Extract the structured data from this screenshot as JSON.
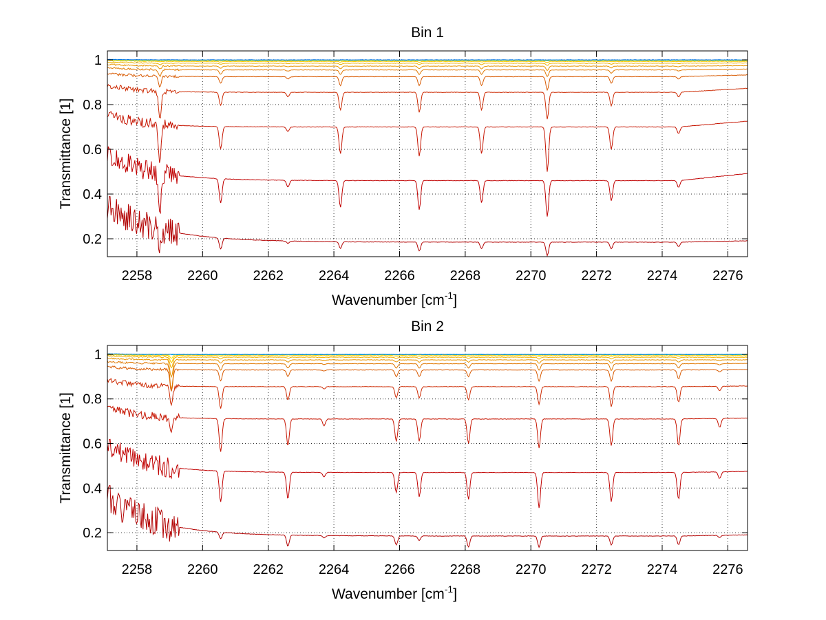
{
  "chart_data": [
    {
      "type": "line",
      "title": "Bin 1",
      "xlabel": "Wavenumber [cm",
      "xlabel_sup": "-1",
      "xlabel_suffix": "]",
      "ylabel": "Transmittance [1]",
      "xlim": [
        2257.1,
        2276.6
      ],
      "ylim": [
        0.12,
        1.04
      ],
      "xticks": [
        2258,
        2260,
        2262,
        2264,
        2266,
        2268,
        2270,
        2272,
        2274,
        2276
      ],
      "yticks": [
        0.2,
        0.4,
        0.6,
        0.8,
        1
      ],
      "ytick_labels": [
        "0.2",
        "0.4",
        "0.6",
        "0.8",
        "1"
      ],
      "grid": true,
      "lines": [
        {
          "baseline": 0.185,
          "slope": 0.06,
          "low_amp": 0.16,
          "low_decay": 1.6,
          "color": "#b20000",
          "depths": [
            0.06,
            0.05,
            0.01,
            0.03,
            0.04,
            0.03,
            0.06,
            0.03,
            0.02
          ]
        },
        {
          "baseline": 0.46,
          "slope": 0.32,
          "low_amp": 0.12,
          "low_decay": 1.3,
          "color": "#c00000",
          "depths": [
            0.15,
            0.11,
            0.03,
            0.12,
            0.13,
            0.1,
            0.16,
            0.09,
            0.03
          ]
        },
        {
          "baseline": 0.7,
          "slope": 0.26,
          "low_amp": 0.06,
          "low_decay": 1.0,
          "color": "#c61400",
          "depths": [
            0.17,
            0.1,
            0.02,
            0.12,
            0.13,
            0.12,
            0.2,
            0.1,
            0.03
          ]
        },
        {
          "baseline": 0.855,
          "slope": 0.18,
          "low_amp": 0.03,
          "low_decay": 0.9,
          "color": "#cc2800",
          "depths": [
            0.12,
            0.06,
            0.02,
            0.08,
            0.09,
            0.08,
            0.12,
            0.06,
            0.02
          ]
        },
        {
          "baseline": 0.925,
          "slope": 0.08,
          "low_amp": 0.015,
          "low_decay": 0.8,
          "color": "#d85a00",
          "depths": [
            0.05,
            0.03,
            0.01,
            0.04,
            0.04,
            0.04,
            0.06,
            0.03,
            0.01
          ]
        },
        {
          "baseline": 0.955,
          "slope": 0.04,
          "low_amp": 0.01,
          "low_decay": 0.8,
          "color": "#e07800",
          "depths": [
            0.03,
            0.02,
            0.005,
            0.02,
            0.02,
            0.02,
            0.03,
            0.015,
            0.005
          ]
        },
        {
          "baseline": 0.972,
          "slope": 0.02,
          "low_amp": 0.008,
          "low_decay": 0.8,
          "color": "#e89400",
          "depths": [
            0.015,
            0.01,
            0.003,
            0.012,
            0.012,
            0.012,
            0.02,
            0.008,
            0.003
          ]
        },
        {
          "baseline": 0.985,
          "slope": 0.01,
          "low_amp": 0.005,
          "low_decay": 0.8,
          "color": "#f0b000",
          "depths": [
            0.008,
            0.005,
            0.002,
            0.006,
            0.006,
            0.006,
            0.01,
            0.004,
            0.002
          ]
        },
        {
          "baseline": 0.993,
          "slope": 0.005,
          "low_amp": 0.004,
          "low_decay": 0.8,
          "color": "#f8cc00",
          "depths": [
            0.004,
            0.003,
            0.001,
            0.003,
            0.003,
            0.003,
            0.005,
            0.002,
            0.001
          ]
        },
        {
          "baseline": 0.997,
          "slope": 0.0,
          "low_amp": 0.003,
          "low_decay": 0.8,
          "color": "#ffe400",
          "depths": [
            0.002,
            0.001,
            0.0,
            0.001,
            0.001,
            0.001,
            0.002,
            0.001,
            0.0
          ]
        },
        {
          "baseline": 0.999,
          "slope": 0.0,
          "low_amp": 0.002,
          "low_decay": 0.8,
          "color": "#00c8c8",
          "depths": [
            0.0,
            0.0,
            0.0,
            0.0,
            0.0,
            0.0,
            0.0,
            0.0,
            0.0
          ]
        },
        {
          "baseline": 1.0,
          "slope": 0.0,
          "low_amp": 0.002,
          "low_decay": 0.8,
          "color": "#0070e0",
          "depths": [
            0.0,
            0.0,
            0.0,
            0.0,
            0.0,
            0.0,
            0.0,
            0.0,
            0.0
          ]
        }
      ],
      "absorption_lines": [
        2258.7,
        2260.55,
        2262.6,
        2264.2,
        2266.6,
        2268.5,
        2270.5,
        2272.45,
        2274.5
      ]
    },
    {
      "type": "line",
      "title": "Bin 2",
      "xlabel": "Wavenumber [cm",
      "xlabel_sup": "-1",
      "xlabel_suffix": "]",
      "ylabel": "Transmittance [1]",
      "xlim": [
        2257.1,
        2276.6
      ],
      "ylim": [
        0.12,
        1.04
      ],
      "xticks": [
        2258,
        2260,
        2262,
        2264,
        2266,
        2268,
        2270,
        2272,
        2274,
        2276
      ],
      "yticks": [
        0.2,
        0.4,
        0.6,
        0.8,
        1
      ],
      "ytick_labels": [
        "0.2",
        "0.4",
        "0.6",
        "0.8",
        "1"
      ],
      "grid": true,
      "lines": [
        {
          "baseline": 0.185,
          "slope": 0.05,
          "low_amp": 0.17,
          "low_decay": 1.5,
          "color": "#b20000",
          "depths": [
            0.04,
            0.03,
            0.05,
            0.01,
            0.04,
            0.02,
            0.05,
            0.05,
            0.04,
            0.04,
            0.01
          ]
        },
        {
          "baseline": 0.47,
          "slope": 0.05,
          "low_amp": 0.12,
          "low_decay": 1.2,
          "color": "#c00000",
          "depths": [
            0.05,
            0.14,
            0.12,
            0.02,
            0.09,
            0.11,
            0.12,
            0.16,
            0.13,
            0.12,
            0.03
          ]
        },
        {
          "baseline": 0.71,
          "slope": 0.04,
          "low_amp": 0.05,
          "low_decay": 1.0,
          "color": "#c61400",
          "depths": [
            0.07,
            0.15,
            0.12,
            0.03,
            0.1,
            0.1,
            0.11,
            0.13,
            0.12,
            0.12,
            0.04
          ]
        },
        {
          "baseline": 0.855,
          "slope": 0.03,
          "low_amp": 0.03,
          "low_decay": 0.9,
          "color": "#cc2800",
          "depths": [
            0.09,
            0.1,
            0.06,
            0.01,
            0.05,
            0.05,
            0.06,
            0.08,
            0.09,
            0.07,
            0.02
          ]
        },
        {
          "baseline": 0.93,
          "slope": 0.015,
          "low_amp": 0.015,
          "low_decay": 0.8,
          "color": "#d85a00",
          "depths": [
            0.1,
            0.05,
            0.03,
            0.005,
            0.03,
            0.03,
            0.03,
            0.05,
            0.05,
            0.04,
            0.01
          ]
        },
        {
          "baseline": 0.958,
          "slope": 0.01,
          "low_amp": 0.01,
          "low_decay": 0.8,
          "color": "#e07800",
          "depths": [
            0.12,
            0.03,
            0.02,
            0.003,
            0.02,
            0.02,
            0.02,
            0.03,
            0.03,
            0.02,
            0.005
          ]
        },
        {
          "baseline": 0.975,
          "slope": 0.005,
          "low_amp": 0.008,
          "low_decay": 0.8,
          "color": "#e89400",
          "depths": [
            0.08,
            0.015,
            0.01,
            0.002,
            0.01,
            0.01,
            0.01,
            0.015,
            0.015,
            0.01,
            0.003
          ]
        },
        {
          "baseline": 0.987,
          "slope": 0.0,
          "low_amp": 0.006,
          "low_decay": 0.8,
          "color": "#f0b000",
          "depths": [
            0.05,
            0.008,
            0.005,
            0.001,
            0.005,
            0.005,
            0.005,
            0.008,
            0.008,
            0.005,
            0.002
          ]
        },
        {
          "baseline": 0.994,
          "slope": 0.0,
          "low_amp": 0.005,
          "low_decay": 0.8,
          "color": "#f8cc00",
          "depths": [
            0.03,
            0.004,
            0.003,
            0.0,
            0.003,
            0.003,
            0.003,
            0.004,
            0.004,
            0.003,
            0.001
          ]
        },
        {
          "baseline": 0.998,
          "slope": 0.0,
          "low_amp": 0.004,
          "low_decay": 0.8,
          "color": "#ffe400",
          "depths": [
            0.015,
            0.002,
            0.001,
            0.0,
            0.001,
            0.001,
            0.001,
            0.002,
            0.002,
            0.001,
            0.0
          ]
        },
        {
          "baseline": 0.999,
          "slope": 0.0,
          "low_amp": 0.003,
          "low_decay": 0.8,
          "color": "#00c8c8",
          "depths": [
            0.0,
            0.0,
            0.0,
            0.0,
            0.0,
            0.0,
            0.0,
            0.0,
            0.0,
            0.0,
            0.0
          ]
        },
        {
          "baseline": 1.0,
          "slope": 0.0,
          "low_amp": 0.002,
          "low_decay": 0.8,
          "color": "#0070e0",
          "depths": [
            0.0,
            0.0,
            0.0,
            0.0,
            0.0,
            0.0,
            0.0,
            0.0,
            0.0,
            0.0,
            0.0
          ]
        }
      ],
      "absorption_lines": [
        2259.05,
        2260.55,
        2262.6,
        2263.7,
        2265.9,
        2266.6,
        2268.1,
        2270.25,
        2272.45,
        2274.5,
        2275.75
      ]
    }
  ]
}
